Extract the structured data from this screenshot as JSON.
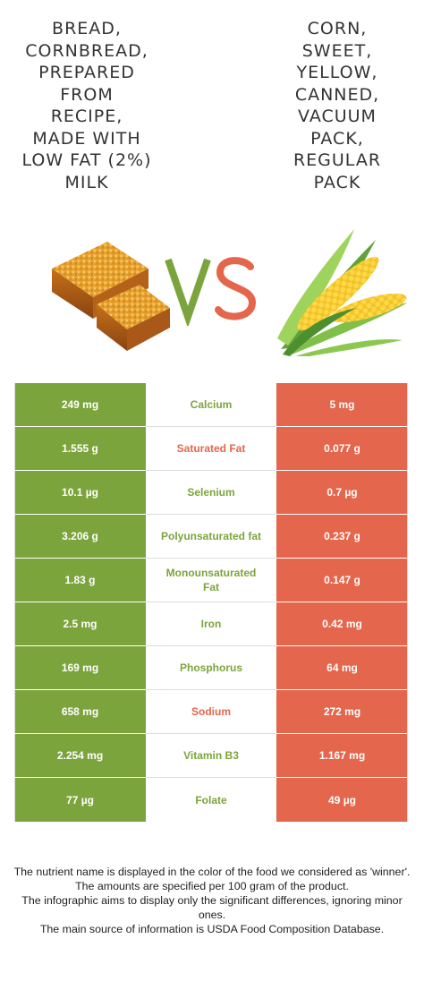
{
  "left_food": {
    "name": "Bread, cornbread, prepared from recipe, made with low fat (2%) milk",
    "title_lines": "BREAD,\nCORNBREAD,\nPREPARED\nFROM\nRECIPE,\nMADE WITH\nLOW FAT (2%)\nMILK",
    "color": "#7ca43c",
    "icon": "cornbread-image"
  },
  "right_food": {
    "name": "Corn, sweet, yellow, canned, vacuum pack, regular pack",
    "title_lines": "CORN,\nSWEET,\nYELLOW,\nCANNED,\nVACUUM\nPACK,\nREGULAR\nPACK",
    "color": "#e4664c",
    "icon": "corn-cob-image"
  },
  "vs": {
    "v": "V",
    "s": "S",
    "v_color": "#7ca43c",
    "s_color": "#e4664c"
  },
  "rows": [
    {
      "nutrient": "Calcium",
      "left": "249 mg",
      "right": "5 mg",
      "winner": "left"
    },
    {
      "nutrient": "Saturated Fat",
      "left": "1.555 g",
      "right": "0.077 g",
      "winner": "right"
    },
    {
      "nutrient": "Selenium",
      "left": "10.1 µg",
      "right": "0.7 µg",
      "winner": "left"
    },
    {
      "nutrient": "Polyunsaturated fat",
      "left": "3.206 g",
      "right": "0.237 g",
      "winner": "left"
    },
    {
      "nutrient": "Monounsaturated Fat",
      "left": "1.83 g",
      "right": "0.147 g",
      "winner": "left"
    },
    {
      "nutrient": "Iron",
      "left": "2.5 mg",
      "right": "0.42 mg",
      "winner": "left"
    },
    {
      "nutrient": "Phosphorus",
      "left": "169 mg",
      "right": "64 mg",
      "winner": "left"
    },
    {
      "nutrient": "Sodium",
      "left": "658 mg",
      "right": "272 mg",
      "winner": "right"
    },
    {
      "nutrient": "Vitamin B3",
      "left": "2.254 mg",
      "right": "1.167 mg",
      "winner": "left"
    },
    {
      "nutrient": "Folate",
      "left": "77 µg",
      "right": "49 µg",
      "winner": "left"
    }
  ],
  "footnote": [
    "The nutrient name is displayed in the color of the food we considered as 'winner'.",
    "The amounts are specified per 100 gram of the product.",
    "The infographic aims to display only the significant differences, ignoring minor ones.",
    "The main source of information is USDA Food Composition Database."
  ]
}
